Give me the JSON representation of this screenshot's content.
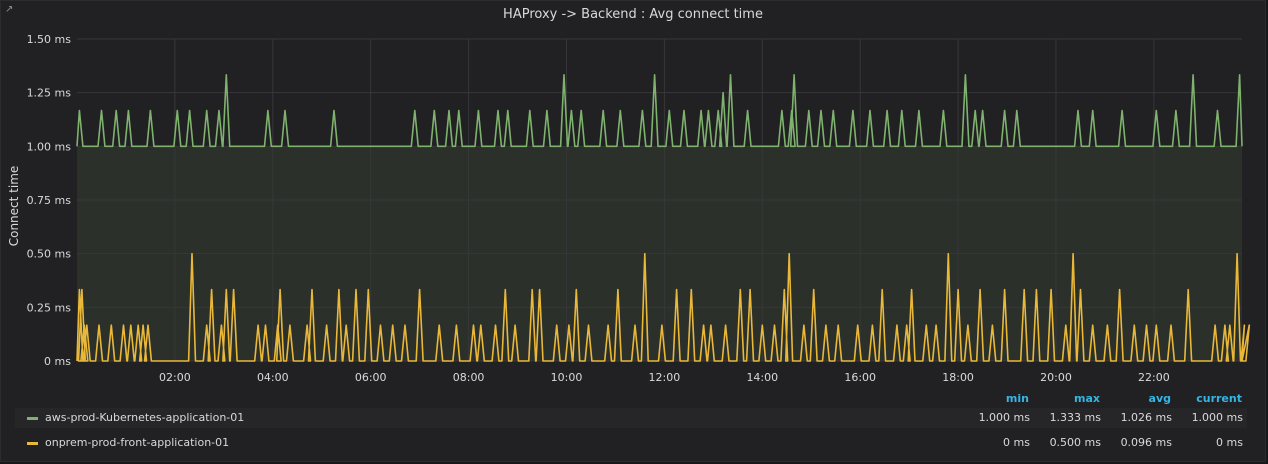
{
  "panel": {
    "title": "HAProxy -> Backend : Avg connect time",
    "link_icon": "external-link-icon"
  },
  "chart_data": {
    "type": "line",
    "title": "HAProxy -> Backend : Avg connect time",
    "ylabel": "Connect time",
    "xlabel": "",
    "ylim": [
      0,
      1.5
    ],
    "y_ticks": [
      "0 ms",
      "0.25 ms",
      "0.50 ms",
      "0.75 ms",
      "1.00 ms",
      "1.25 ms",
      "1.50 ms"
    ],
    "x_ticks": [
      "02:00",
      "04:00",
      "06:00",
      "08:00",
      "10:00",
      "12:00",
      "14:00",
      "16:00",
      "18:00",
      "20:00",
      "22:00"
    ],
    "grid": true,
    "threshold_band": {
      "from": 0,
      "to": 1.0,
      "color": "#2b302a"
    },
    "series": [
      {
        "name": "aws-prod-Kubernetes-application-01",
        "color": "#7eb26d",
        "baseline": 1.0,
        "spikes": [
          [
            0.05,
            1.167
          ],
          [
            0.5,
            1.167
          ],
          [
            0.8,
            1.167
          ],
          [
            1.05,
            1.167
          ],
          [
            1.5,
            1.167
          ],
          [
            2.05,
            1.167
          ],
          [
            2.3,
            1.167
          ],
          [
            2.65,
            1.167
          ],
          [
            2.9,
            1.167
          ],
          [
            3.05,
            1.333
          ],
          [
            3.9,
            1.167
          ],
          [
            4.25,
            1.167
          ],
          [
            5.25,
            1.167
          ],
          [
            6.9,
            1.167
          ],
          [
            7.3,
            1.167
          ],
          [
            7.6,
            1.167
          ],
          [
            7.8,
            1.167
          ],
          [
            8.2,
            1.167
          ],
          [
            8.6,
            1.167
          ],
          [
            8.8,
            1.167
          ],
          [
            9.25,
            1.167
          ],
          [
            9.6,
            1.167
          ],
          [
            9.95,
            1.333
          ],
          [
            10.1,
            1.167
          ],
          [
            10.3,
            1.167
          ],
          [
            10.75,
            1.167
          ],
          [
            11.1,
            1.167
          ],
          [
            11.55,
            1.167
          ],
          [
            11.8,
            1.333
          ],
          [
            12.1,
            1.167
          ],
          [
            12.4,
            1.167
          ],
          [
            12.75,
            1.167
          ],
          [
            12.9,
            1.167
          ],
          [
            13.1,
            1.167
          ],
          [
            13.2,
            1.25
          ],
          [
            13.35,
            1.333
          ],
          [
            13.7,
            1.167
          ],
          [
            14.4,
            1.167
          ],
          [
            14.6,
            1.167
          ],
          [
            14.65,
            1.333
          ],
          [
            14.95,
            1.167
          ],
          [
            15.2,
            1.167
          ],
          [
            15.45,
            1.167
          ],
          [
            15.85,
            1.167
          ],
          [
            16.2,
            1.167
          ],
          [
            16.55,
            1.167
          ],
          [
            16.85,
            1.167
          ],
          [
            17.2,
            1.167
          ],
          [
            17.7,
            1.167
          ],
          [
            18.15,
            1.333
          ],
          [
            18.35,
            1.167
          ],
          [
            18.5,
            1.167
          ],
          [
            18.95,
            1.167
          ],
          [
            19.2,
            1.167
          ],
          [
            20.45,
            1.167
          ],
          [
            20.75,
            1.167
          ],
          [
            21.35,
            1.167
          ],
          [
            22.05,
            1.167
          ],
          [
            22.45,
            1.167
          ],
          [
            22.8,
            1.333
          ],
          [
            23.3,
            1.167
          ],
          [
            23.75,
            1.333
          ]
        ]
      },
      {
        "name": "onprem-prod-front-application-01",
        "color": "#eab839",
        "baseline": 0.0,
        "spikes": [
          [
            0.05,
            0.333
          ],
          [
            0.1,
            0.333
          ],
          [
            0.15,
            0.167
          ],
          [
            0.2,
            0.167
          ],
          [
            0.45,
            0.167
          ],
          [
            0.7,
            0.167
          ],
          [
            0.95,
            0.167
          ],
          [
            1.1,
            0.167
          ],
          [
            1.25,
            0.167
          ],
          [
            1.35,
            0.167
          ],
          [
            1.45,
            0.167
          ],
          [
            2.35,
            0.5
          ],
          [
            2.65,
            0.167
          ],
          [
            2.75,
            0.333
          ],
          [
            2.95,
            0.167
          ],
          [
            3.05,
            0.333
          ],
          [
            3.2,
            0.333
          ],
          [
            3.7,
            0.167
          ],
          [
            3.85,
            0.167
          ],
          [
            4.1,
            0.167
          ],
          [
            4.15,
            0.333
          ],
          [
            4.35,
            0.167
          ],
          [
            4.7,
            0.167
          ],
          [
            4.8,
            0.333
          ],
          [
            5.1,
            0.167
          ],
          [
            5.35,
            0.333
          ],
          [
            5.5,
            0.167
          ],
          [
            5.7,
            0.333
          ],
          [
            5.95,
            0.333
          ],
          [
            6.2,
            0.167
          ],
          [
            6.45,
            0.167
          ],
          [
            6.7,
            0.167
          ],
          [
            7.0,
            0.333
          ],
          [
            7.4,
            0.167
          ],
          [
            7.75,
            0.167
          ],
          [
            8.1,
            0.167
          ],
          [
            8.25,
            0.167
          ],
          [
            8.55,
            0.167
          ],
          [
            8.75,
            0.333
          ],
          [
            8.95,
            0.167
          ],
          [
            9.3,
            0.333
          ],
          [
            9.45,
            0.333
          ],
          [
            9.8,
            0.167
          ],
          [
            10.05,
            0.167
          ],
          [
            10.2,
            0.333
          ],
          [
            10.45,
            0.167
          ],
          [
            10.85,
            0.167
          ],
          [
            11.05,
            0.333
          ],
          [
            11.4,
            0.167
          ],
          [
            11.6,
            0.5
          ],
          [
            11.95,
            0.167
          ],
          [
            12.25,
            0.333
          ],
          [
            12.55,
            0.333
          ],
          [
            12.8,
            0.167
          ],
          [
            12.95,
            0.167
          ],
          [
            13.25,
            0.167
          ],
          [
            13.55,
            0.333
          ],
          [
            13.75,
            0.333
          ],
          [
            14.0,
            0.167
          ],
          [
            14.25,
            0.167
          ],
          [
            14.45,
            0.333
          ],
          [
            14.55,
            0.5
          ],
          [
            14.85,
            0.167
          ],
          [
            15.05,
            0.333
          ],
          [
            15.3,
            0.167
          ],
          [
            15.55,
            0.167
          ],
          [
            15.95,
            0.167
          ],
          [
            16.25,
            0.167
          ],
          [
            16.45,
            0.333
          ],
          [
            16.75,
            0.167
          ],
          [
            16.95,
            0.167
          ],
          [
            17.05,
            0.333
          ],
          [
            17.35,
            0.167
          ],
          [
            17.55,
            0.167
          ],
          [
            17.8,
            0.5
          ],
          [
            18.0,
            0.333
          ],
          [
            18.2,
            0.167
          ],
          [
            18.45,
            0.333
          ],
          [
            18.7,
            0.167
          ],
          [
            18.95,
            0.333
          ],
          [
            19.35,
            0.333
          ],
          [
            19.6,
            0.333
          ],
          [
            19.9,
            0.333
          ],
          [
            20.2,
            0.167
          ],
          [
            20.35,
            0.5
          ],
          [
            20.5,
            0.333
          ],
          [
            20.75,
            0.167
          ],
          [
            21.05,
            0.167
          ],
          [
            21.3,
            0.333
          ],
          [
            21.6,
            0.167
          ],
          [
            21.85,
            0.167
          ],
          [
            22.05,
            0.167
          ],
          [
            22.35,
            0.167
          ],
          [
            22.7,
            0.333
          ],
          [
            23.25,
            0.167
          ],
          [
            23.45,
            0.167
          ],
          [
            23.55,
            0.167
          ],
          [
            23.7,
            0.5
          ],
          [
            23.85,
            0.167
          ],
          [
            23.95,
            0.167
          ]
        ]
      }
    ]
  },
  "legend": {
    "headers": {
      "min": "min",
      "max": "max",
      "avg": "avg",
      "current": "current"
    },
    "rows": [
      {
        "name": "aws-prod-Kubernetes-application-01",
        "color": "#7eb26d",
        "min": "1.000 ms",
        "max": "1.333 ms",
        "avg": "1.026 ms",
        "current": "1.000 ms"
      },
      {
        "name": "onprem-prod-front-application-01",
        "color": "#eab839",
        "min": "0 ms",
        "max": "0.500 ms",
        "avg": "0.096 ms",
        "current": "0 ms"
      }
    ]
  }
}
